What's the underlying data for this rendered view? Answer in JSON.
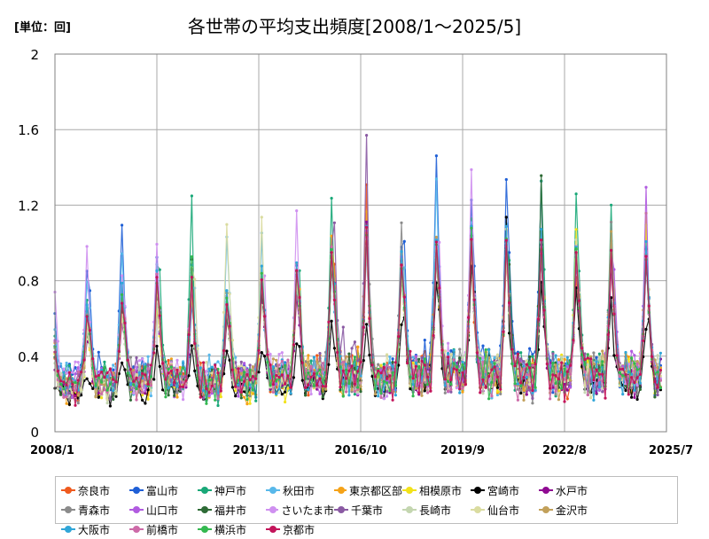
{
  "chart_data": {
    "type": "line",
    "unit_label": "[単位：回]",
    "title": "各世帯の平均支出頻度[2008/1～2025/5]",
    "x_range": [
      "2008/1",
      "2025/7"
    ],
    "x_tick_labels": [
      "2008/1",
      "2010/12",
      "2013/11",
      "2016/10",
      "2019/9",
      "2022/8",
      "2025/7"
    ],
    "y_tick_labels": [
      "0",
      "0.4",
      "0.8",
      "1.2",
      "1.6",
      "2"
    ],
    "ylim": [
      0,
      2
    ],
    "grid": true,
    "legend_position": "bottom",
    "series": [
      {
        "name": "奈良市",
        "color": "#ef5a1e",
        "annual_peaks": [
          0.55,
          0.62,
          0.78,
          0.85,
          0.72,
          0.78,
          0.82,
          0.95,
          1.27,
          0.85,
          1.02,
          0.95,
          0.9,
          0.93,
          0.85,
          0.9,
          0.95,
          1.0,
          1.28
        ]
      },
      {
        "name": "富山市",
        "color": "#1f5fd6",
        "annual_peaks": [
          0.85,
          1.09,
          0.92,
          0.7,
          0.75,
          0.8,
          0.85,
          0.9,
          1.1,
          0.95,
          1.46,
          1.22,
          1.34,
          1.35,
          0.95,
          1.05,
          0.9,
          1.06,
          1.2
        ]
      },
      {
        "name": "神戸市",
        "color": "#19a878",
        "annual_peaks": [
          0.7,
          0.75,
          0.85,
          1.25,
          0.68,
          0.75,
          0.8,
          1.22,
          1.05,
          0.85,
          1.0,
          1.1,
          1.0,
          1.3,
          1.25,
          1.24,
          0.9,
          0.95,
          1.0
        ]
      },
      {
        "name": "秋田市",
        "color": "#58b8ea",
        "annual_peaks": [
          0.8,
          0.95,
          0.9,
          0.75,
          1.06,
          1.06,
          0.72,
          0.9,
          0.95,
          0.85,
          1.31,
          1.14,
          1.12,
          1.0,
          1.0,
          0.95,
          1.0,
          0.9,
          0.85
        ]
      },
      {
        "name": "東京都区部",
        "color": "#f5a218",
        "annual_peaks": [
          0.6,
          0.65,
          0.75,
          0.8,
          0.65,
          0.75,
          0.8,
          1.05,
          1.2,
          0.9,
          1.05,
          1.0,
          1.1,
          1.0,
          1.0,
          0.95,
          1.12,
          1.0,
          1.05
        ]
      },
      {
        "name": "相模原市",
        "color": "#f2e21a",
        "annual_peaks": [
          0.55,
          0.6,
          0.7,
          0.75,
          0.6,
          0.7,
          0.75,
          0.9,
          1.0,
          0.8,
          0.95,
          0.95,
          1.0,
          0.95,
          1.04,
          1.0,
          1.12,
          0.9,
          0.95
        ]
      },
      {
        "name": "宮崎市",
        "color": "#000000",
        "annual_peaks": [
          0.3,
          0.35,
          0.45,
          0.45,
          0.4,
          0.45,
          0.5,
          0.55,
          0.6,
          0.6,
          0.8,
          0.85,
          1.1,
          0.8,
          0.75,
          0.75,
          0.55,
          0.8,
          1.0
        ]
      },
      {
        "name": "水戸市",
        "color": "#8f0a92",
        "annual_peaks": [
          0.5,
          0.6,
          0.7,
          0.75,
          0.6,
          0.7,
          0.75,
          0.85,
          1.1,
          0.85,
          0.95,
          1.1,
          0.95,
          0.95,
          0.9,
          0.9,
          0.9,
          0.85,
          1.0
        ]
      },
      {
        "name": "青森市",
        "color": "#8b8b8b",
        "annual_peaks": [
          0.6,
          0.7,
          0.8,
          0.85,
          0.7,
          0.8,
          0.85,
          0.95,
          1.05,
          1.1,
          1.0,
          1.05,
          1.0,
          1.0,
          0.95,
          1.15,
          0.95,
          0.95,
          1.22
        ]
      },
      {
        "name": "山口市",
        "color": "#b15be0",
        "annual_peaks": [
          0.65,
          0.7,
          0.8,
          0.85,
          0.7,
          0.78,
          0.85,
          0.95,
          1.05,
          0.9,
          1.0,
          1.05,
          1.0,
          1.0,
          0.95,
          1.0,
          1.33,
          0.95,
          1.0
        ]
      },
      {
        "name": "福井市",
        "color": "#2e6b36",
        "annual_peaks": [
          0.55,
          0.65,
          0.75,
          0.9,
          0.65,
          0.75,
          0.8,
          0.9,
          1.05,
          0.85,
          0.95,
          1.0,
          1.0,
          1.32,
          0.95,
          1.0,
          0.95,
          0.9,
          0.95
        ]
      },
      {
        "name": "さいたま市",
        "color": "#cf90f0",
        "annual_peaks": [
          1.02,
          0.8,
          0.99,
          0.85,
          0.7,
          0.78,
          1.19,
          1.0,
          1.0,
          0.9,
          1.0,
          1.42,
          1.0,
          1.0,
          0.95,
          1.0,
          0.95,
          0.95,
          1.0
        ]
      },
      {
        "name": "千葉市",
        "color": "#8a5aa3",
        "annual_peaks": [
          0.6,
          0.7,
          0.8,
          0.85,
          0.7,
          0.8,
          0.85,
          0.95,
          1.59,
          0.9,
          1.0,
          1.05,
          1.0,
          1.0,
          0.95,
          1.0,
          0.95,
          0.95,
          1.0
        ]
      },
      {
        "name": "長崎市",
        "color": "#c4d6b0",
        "annual_peaks": [
          0.5,
          0.6,
          0.7,
          0.8,
          0.65,
          0.7,
          0.8,
          0.9,
          1.0,
          0.85,
          0.95,
          1.0,
          0.95,
          0.95,
          0.9,
          0.95,
          0.9,
          0.9,
          0.95
        ]
      },
      {
        "name": "仙台市",
        "color": "#dadca0",
        "annual_peaks": [
          0.55,
          0.65,
          0.75,
          0.85,
          1.11,
          1.12,
          0.85,
          0.95,
          1.0,
          0.85,
          0.95,
          1.05,
          1.1,
          1.0,
          1.0,
          1.0,
          0.95,
          1.05,
          1.0
        ]
      },
      {
        "name": "金沢市",
        "color": "#c2a05a",
        "annual_peaks": [
          0.6,
          0.7,
          0.8,
          0.9,
          0.7,
          0.8,
          0.9,
          1.0,
          1.05,
          0.9,
          1.0,
          1.05,
          1.0,
          1.0,
          0.95,
          1.1,
          0.95,
          0.95,
          1.0
        ]
      },
      {
        "name": "大阪市",
        "color": "#30a6d8",
        "annual_peaks": [
          0.65,
          0.75,
          0.85,
          0.9,
          0.75,
          0.85,
          0.9,
          1.0,
          1.1,
          0.95,
          1.05,
          1.1,
          1.05,
          1.05,
          1.0,
          1.0,
          1.0,
          1.0,
          1.05
        ]
      },
      {
        "name": "前橋市",
        "color": "#cd6aa8",
        "annual_peaks": [
          0.6,
          0.7,
          0.8,
          0.85,
          0.7,
          0.8,
          0.85,
          0.95,
          1.0,
          0.85,
          0.95,
          1.0,
          0.95,
          0.95,
          0.9,
          0.95,
          0.9,
          0.9,
          0.95
        ]
      },
      {
        "name": "横浜市",
        "color": "#33b84f",
        "annual_peaks": [
          0.6,
          0.7,
          0.8,
          0.9,
          0.7,
          0.8,
          0.85,
          0.95,
          1.05,
          0.9,
          1.0,
          1.05,
          1.0,
          1.0,
          0.95,
          1.0,
          0.95,
          0.95,
          1.0
        ]
      },
      {
        "name": "京都市",
        "color": "#c3145a",
        "annual_peaks": [
          0.6,
          0.7,
          0.8,
          0.85,
          0.7,
          0.8,
          0.85,
          0.95,
          1.05,
          0.9,
          1.0,
          1.05,
          1.0,
          1.0,
          0.95,
          1.0,
          0.95,
          0.95,
          1.0
        ]
      }
    ]
  }
}
